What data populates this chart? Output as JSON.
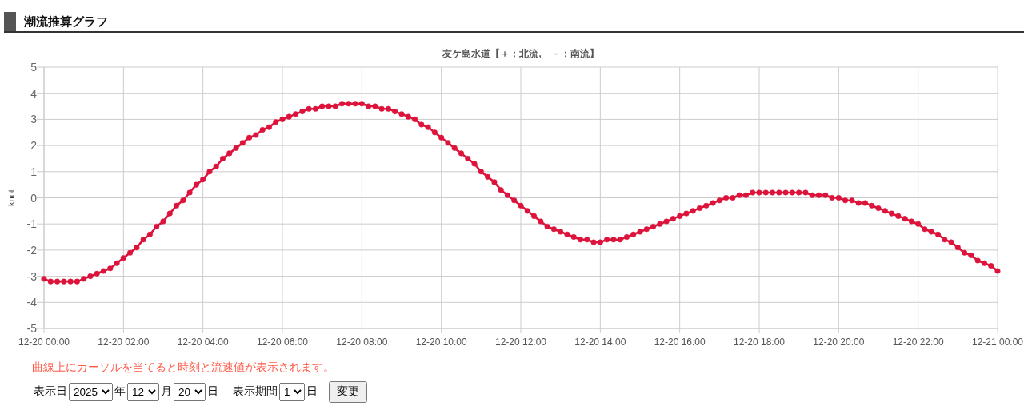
{
  "chart_data": {
    "type": "line",
    "title": "潮流推算グラフ",
    "subtitle": "友ケ島水道【＋：北流,　－：南流】",
    "ylabel": "knot",
    "x": [
      "2025-12-20T00:00",
      "2025-12-20T00:10",
      "2025-12-20T00:20",
      "2025-12-20T00:30",
      "2025-12-20T00:40",
      "2025-12-20T00:50",
      "2025-12-20T01:00",
      "2025-12-20T01:10",
      "2025-12-20T01:20",
      "2025-12-20T01:30",
      "2025-12-20T01:40",
      "2025-12-20T01:50",
      "2025-12-20T02:00",
      "2025-12-20T02:10",
      "2025-12-20T02:20",
      "2025-12-20T02:30",
      "2025-12-20T02:40",
      "2025-12-20T02:50",
      "2025-12-20T03:00",
      "2025-12-20T03:10",
      "2025-12-20T03:20",
      "2025-12-20T03:30",
      "2025-12-20T03:40",
      "2025-12-20T03:50",
      "2025-12-20T04:00",
      "2025-12-20T04:10",
      "2025-12-20T04:20",
      "2025-12-20T04:30",
      "2025-12-20T04:40",
      "2025-12-20T04:50",
      "2025-12-20T05:00",
      "2025-12-20T05:10",
      "2025-12-20T05:20",
      "2025-12-20T05:30",
      "2025-12-20T05:40",
      "2025-12-20T05:50",
      "2025-12-20T06:00",
      "2025-12-20T06:10",
      "2025-12-20T06:20",
      "2025-12-20T06:30",
      "2025-12-20T06:40",
      "2025-12-20T06:50",
      "2025-12-20T07:00",
      "2025-12-20T07:10",
      "2025-12-20T07:20",
      "2025-12-20T07:30",
      "2025-12-20T07:40",
      "2025-12-20T07:50",
      "2025-12-20T08:00",
      "2025-12-20T08:10",
      "2025-12-20T08:20",
      "2025-12-20T08:30",
      "2025-12-20T08:40",
      "2025-12-20T08:50",
      "2025-12-20T09:00",
      "2025-12-20T09:10",
      "2025-12-20T09:20",
      "2025-12-20T09:30",
      "2025-12-20T09:40",
      "2025-12-20T09:50",
      "2025-12-20T10:00",
      "2025-12-20T10:10",
      "2025-12-20T10:20",
      "2025-12-20T10:30",
      "2025-12-20T10:40",
      "2025-12-20T10:50",
      "2025-12-20T11:00",
      "2025-12-20T11:10",
      "2025-12-20T11:20",
      "2025-12-20T11:30",
      "2025-12-20T11:40",
      "2025-12-20T11:50",
      "2025-12-20T12:00",
      "2025-12-20T12:10",
      "2025-12-20T12:20",
      "2025-12-20T12:30",
      "2025-12-20T12:40",
      "2025-12-20T12:50",
      "2025-12-20T13:00",
      "2025-12-20T13:10",
      "2025-12-20T13:20",
      "2025-12-20T13:30",
      "2025-12-20T13:40",
      "2025-12-20T13:50",
      "2025-12-20T14:00",
      "2025-12-20T14:10",
      "2025-12-20T14:20",
      "2025-12-20T14:30",
      "2025-12-20T14:40",
      "2025-12-20T14:50",
      "2025-12-20T15:00",
      "2025-12-20T15:10",
      "2025-12-20T15:20",
      "2025-12-20T15:30",
      "2025-12-20T15:40",
      "2025-12-20T15:50",
      "2025-12-20T16:00",
      "2025-12-20T16:10",
      "2025-12-20T16:20",
      "2025-12-20T16:30",
      "2025-12-20T16:40",
      "2025-12-20T16:50",
      "2025-12-20T17:00",
      "2025-12-20T17:10",
      "2025-12-20T17:20",
      "2025-12-20T17:30",
      "2025-12-20T17:40",
      "2025-12-20T17:50",
      "2025-12-20T18:00",
      "2025-12-20T18:10",
      "2025-12-20T18:20",
      "2025-12-20T18:30",
      "2025-12-20T18:40",
      "2025-12-20T18:50",
      "2025-12-20T19:00",
      "2025-12-20T19:10",
      "2025-12-20T19:20",
      "2025-12-20T19:30",
      "2025-12-20T19:40",
      "2025-12-20T19:50",
      "2025-12-20T20:00",
      "2025-12-20T20:10",
      "2025-12-20T20:20",
      "2025-12-20T20:30",
      "2025-12-20T20:40",
      "2025-12-20T20:50",
      "2025-12-20T21:00",
      "2025-12-20T21:10",
      "2025-12-20T21:20",
      "2025-12-20T21:30",
      "2025-12-20T21:40",
      "2025-12-20T21:50",
      "2025-12-20T22:00",
      "2025-12-20T22:10",
      "2025-12-20T22:20",
      "2025-12-20T22:30",
      "2025-12-20T22:40",
      "2025-12-20T22:50",
      "2025-12-20T23:00",
      "2025-12-20T23:10",
      "2025-12-20T23:20",
      "2025-12-20T23:30",
      "2025-12-20T23:40",
      "2025-12-20T23:50",
      "2025-12-21T00:00"
    ],
    "series": [
      {
        "color": "#dc143c",
        "values": [
          -3.1,
          -3.2,
          -3.2,
          -3.2,
          -3.2,
          -3.2,
          -3.1,
          -3,
          -2.9,
          -2.8,
          -2.7,
          -2.5,
          -2.3,
          -2.1,
          -1.9,
          -1.6,
          -1.4,
          -1.1,
          -0.9,
          -0.6,
          -0.3,
          -0.1,
          0.2,
          0.5,
          0.7,
          1,
          1.2,
          1.5,
          1.7,
          1.9,
          2.1,
          2.3,
          2.4,
          2.6,
          2.7,
          2.9,
          3,
          3.1,
          3.2,
          3.3,
          3.4,
          3.4,
          3.5,
          3.5,
          3.5,
          3.6,
          3.6,
          3.6,
          3.6,
          3.5,
          3.5,
          3.4,
          3.4,
          3.3,
          3.2,
          3.1,
          3,
          2.8,
          2.7,
          2.5,
          2.3,
          2.1,
          1.9,
          1.7,
          1.5,
          1.3,
          1,
          0.8,
          0.6,
          0.3,
          0.1,
          -0.1,
          -0.3,
          -0.5,
          -0.7,
          -0.9,
          -1.1,
          -1.2,
          -1.3,
          -1.4,
          -1.5,
          -1.6,
          -1.6,
          -1.7,
          -1.7,
          -1.6,
          -1.6,
          -1.6,
          -1.5,
          -1.4,
          -1.3,
          -1.2,
          -1.1,
          -1,
          -0.9,
          -0.8,
          -0.7,
          -0.6,
          -0.5,
          -0.4,
          -0.3,
          -0.2,
          -0.1,
          0,
          0,
          0.1,
          0.1,
          0.2,
          0.2,
          0.2,
          0.2,
          0.2,
          0.2,
          0.2,
          0.2,
          0.2,
          0.1,
          0.1,
          0.1,
          0,
          0,
          -0.1,
          -0.1,
          -0.2,
          -0.2,
          -0.3,
          -0.4,
          -0.5,
          -0.6,
          -0.7,
          -0.8,
          -0.9,
          -1,
          -1.2,
          -1.3,
          -1.4,
          -1.6,
          -1.7,
          -1.9,
          -2.1,
          -2.2,
          -2.4,
          -2.5,
          -2.6,
          -2.8
        ]
      }
    ],
    "xlim": [
      "2025-12-20T00:00",
      "2025-12-21T00:00"
    ],
    "xticks": [
      {
        "value": "2025-12-20T00:00",
        "label": "12-20 00:00"
      },
      {
        "value": "2025-12-20T02:00",
        "label": "12-20 02:00"
      },
      {
        "value": "2025-12-20T04:00",
        "label": "12-20 04:00"
      },
      {
        "value": "2025-12-20T06:00",
        "label": "12-20 06:00"
      },
      {
        "value": "2025-12-20T08:00",
        "label": "12-20 08:00"
      },
      {
        "value": "2025-12-20T10:00",
        "label": "12-20 10:00"
      },
      {
        "value": "2025-12-20T12:00",
        "label": "12-20 12:00"
      },
      {
        "value": "2025-12-20T14:00",
        "label": "12-20 14:00"
      },
      {
        "value": "2025-12-20T16:00",
        "label": "12-20 16:00"
      },
      {
        "value": "2025-12-20T18:00",
        "label": "12-20 18:00"
      },
      {
        "value": "2025-12-20T20:00",
        "label": "12-20 20:00"
      },
      {
        "value": "2025-12-20T22:00",
        "label": "12-20 22:00"
      },
      {
        "value": "2025-12-21T00:00",
        "label": "12-21 00:00"
      }
    ],
    "ylim": [
      -5,
      5
    ],
    "yticks": [
      -5,
      -4,
      -3,
      -2,
      -1,
      0,
      1,
      2,
      3,
      4,
      5
    ],
    "grid": true,
    "marker": "circle",
    "line_style": "solid",
    "annotations": [
      "曲線上にカーソルを当てると時刻と流速値が表示されます。",
      "表示日",
      "2025",
      "年",
      "12",
      "月",
      "20",
      "日",
      "表示期間",
      "1",
      "日",
      "変更"
    ]
  }
}
